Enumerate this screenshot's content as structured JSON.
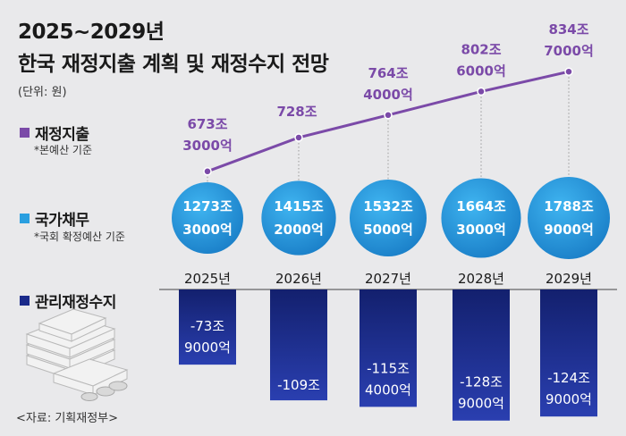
{
  "title_line1": "2025~2029년",
  "title_line2": "한국 재정지출 계획 및 재정수지 전망",
  "unit": "(단위: 원)",
  "legend": {
    "spending": {
      "label": "재정지출",
      "note": "*본예산 기준",
      "color": "#7b4aa8"
    },
    "debt": {
      "label": "국가채무",
      "note": "*국회 확정예산 기준",
      "color": "#2a9fe0"
    },
    "balance": {
      "label": "관리재정수지",
      "color": "#1a2a8a"
    }
  },
  "source": "<자료: 기획재정부>",
  "chart_data": {
    "type": "line+bubble+bar",
    "categories": [
      "2025년",
      "2026년",
      "2027년",
      "2028년",
      "2029년"
    ],
    "series": [
      {
        "name": "재정지출",
        "type": "line",
        "values": [
          673.3,
          728,
          764.4,
          802.6,
          834.7
        ],
        "labels": [
          [
            "673조",
            "3000억"
          ],
          [
            "728조"
          ],
          [
            "764조",
            "4000억"
          ],
          [
            "802조",
            "6000억"
          ],
          [
            "834조",
            "7000억"
          ]
        ]
      },
      {
        "name": "국가채무",
        "type": "bubble",
        "values": [
          1273.3,
          1415.2,
          1532.5,
          1664.3,
          1788.9
        ],
        "labels": [
          [
            "1273조",
            "3000억"
          ],
          [
            "1415조",
            "2000억"
          ],
          [
            "1532조",
            "5000억"
          ],
          [
            "1664조",
            "3000억"
          ],
          [
            "1788조",
            "9000억"
          ]
        ]
      },
      {
        "name": "관리재정수지",
        "type": "bar",
        "values": [
          -73.9,
          -109,
          -115.4,
          -128.9,
          -124.9
        ],
        "labels": [
          [
            "-73조",
            "9000억"
          ],
          [
            "-109조"
          ],
          [
            "-115조",
            "4000억"
          ],
          [
            "-128조",
            "9000억"
          ],
          [
            "-124조",
            "9000억"
          ]
        ]
      }
    ]
  }
}
